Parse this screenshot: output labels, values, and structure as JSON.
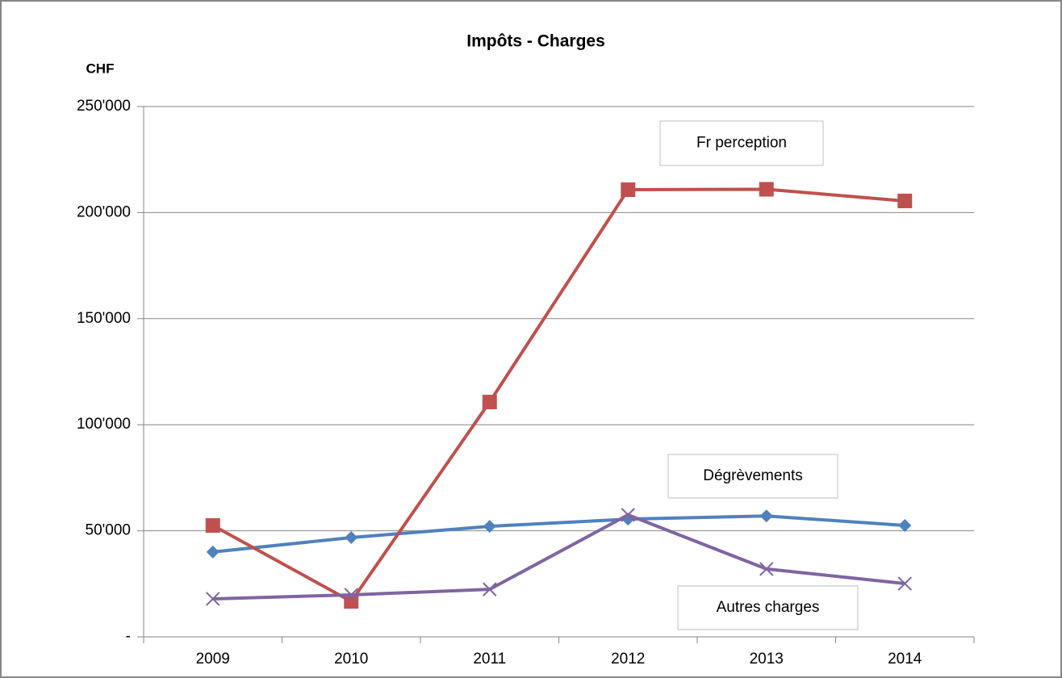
{
  "chart_data": {
    "type": "line",
    "title": "Impôts - Charges",
    "y_label": "CHF",
    "categories": [
      "2009",
      "2010",
      "2011",
      "2012",
      "2013",
      "2014"
    ],
    "series": [
      {
        "name": "Fr perception",
        "color": "#4f81bd",
        "marker": "diamond",
        "values": [
          40000,
          46800,
          52100,
          55500,
          57000,
          52500
        ]
      },
      {
        "name": "Dégrèvements",
        "color": "#c0504d",
        "marker": "square",
        "values": [
          52500,
          16700,
          110700,
          210800,
          211000,
          205500
        ]
      },
      {
        "name": "Autres charges",
        "color": "#8064a2",
        "marker": "x",
        "values": [
          17900,
          19800,
          22400,
          57500,
          32000,
          25100
        ]
      }
    ],
    "ylim": [
      0,
      250000
    ],
    "yticks": [
      {
        "value": 0,
        "label": "-"
      },
      {
        "value": 50000,
        "label": "50'000"
      },
      {
        "value": 100000,
        "label": "100'000"
      },
      {
        "value": 150000,
        "label": "150'000"
      },
      {
        "value": 200000,
        "label": "200'000"
      },
      {
        "value": 250000,
        "label": "250'000"
      }
    ],
    "grid": true
  }
}
